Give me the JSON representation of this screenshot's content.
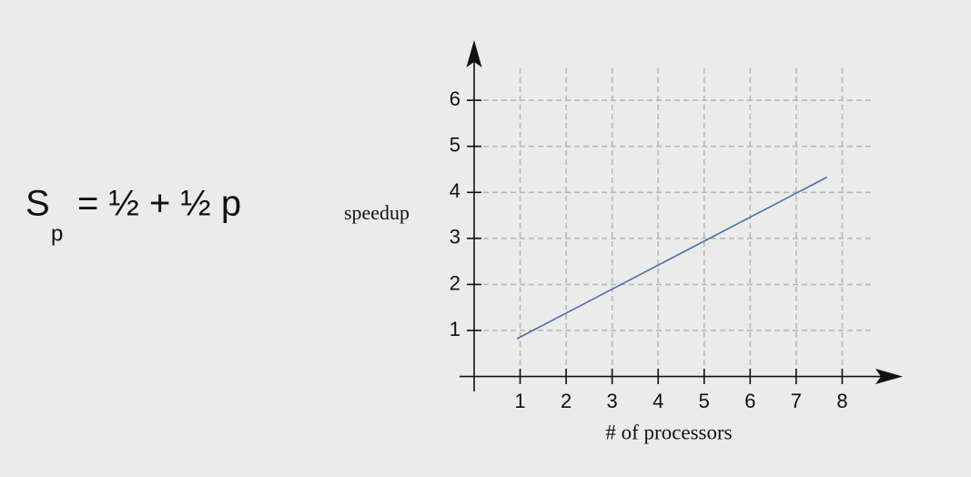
{
  "formula": {
    "base": "S",
    "subscript": "p",
    "rest": "= ½ + ½ p"
  },
  "chart_data": {
    "type": "line",
    "y_label": "speedup",
    "x_label": "# of processors",
    "x": [
      0.93,
      7.67
    ],
    "values": [
      0.82,
      4.33
    ],
    "color": "#4a72a8",
    "xlim": [
      0,
      9
    ],
    "ylim": [
      0,
      7
    ],
    "xticks": [
      1,
      2,
      3,
      4,
      5,
      6,
      7,
      8
    ],
    "yticks": [
      1,
      2,
      3,
      4,
      5,
      6
    ],
    "grid": true
  }
}
